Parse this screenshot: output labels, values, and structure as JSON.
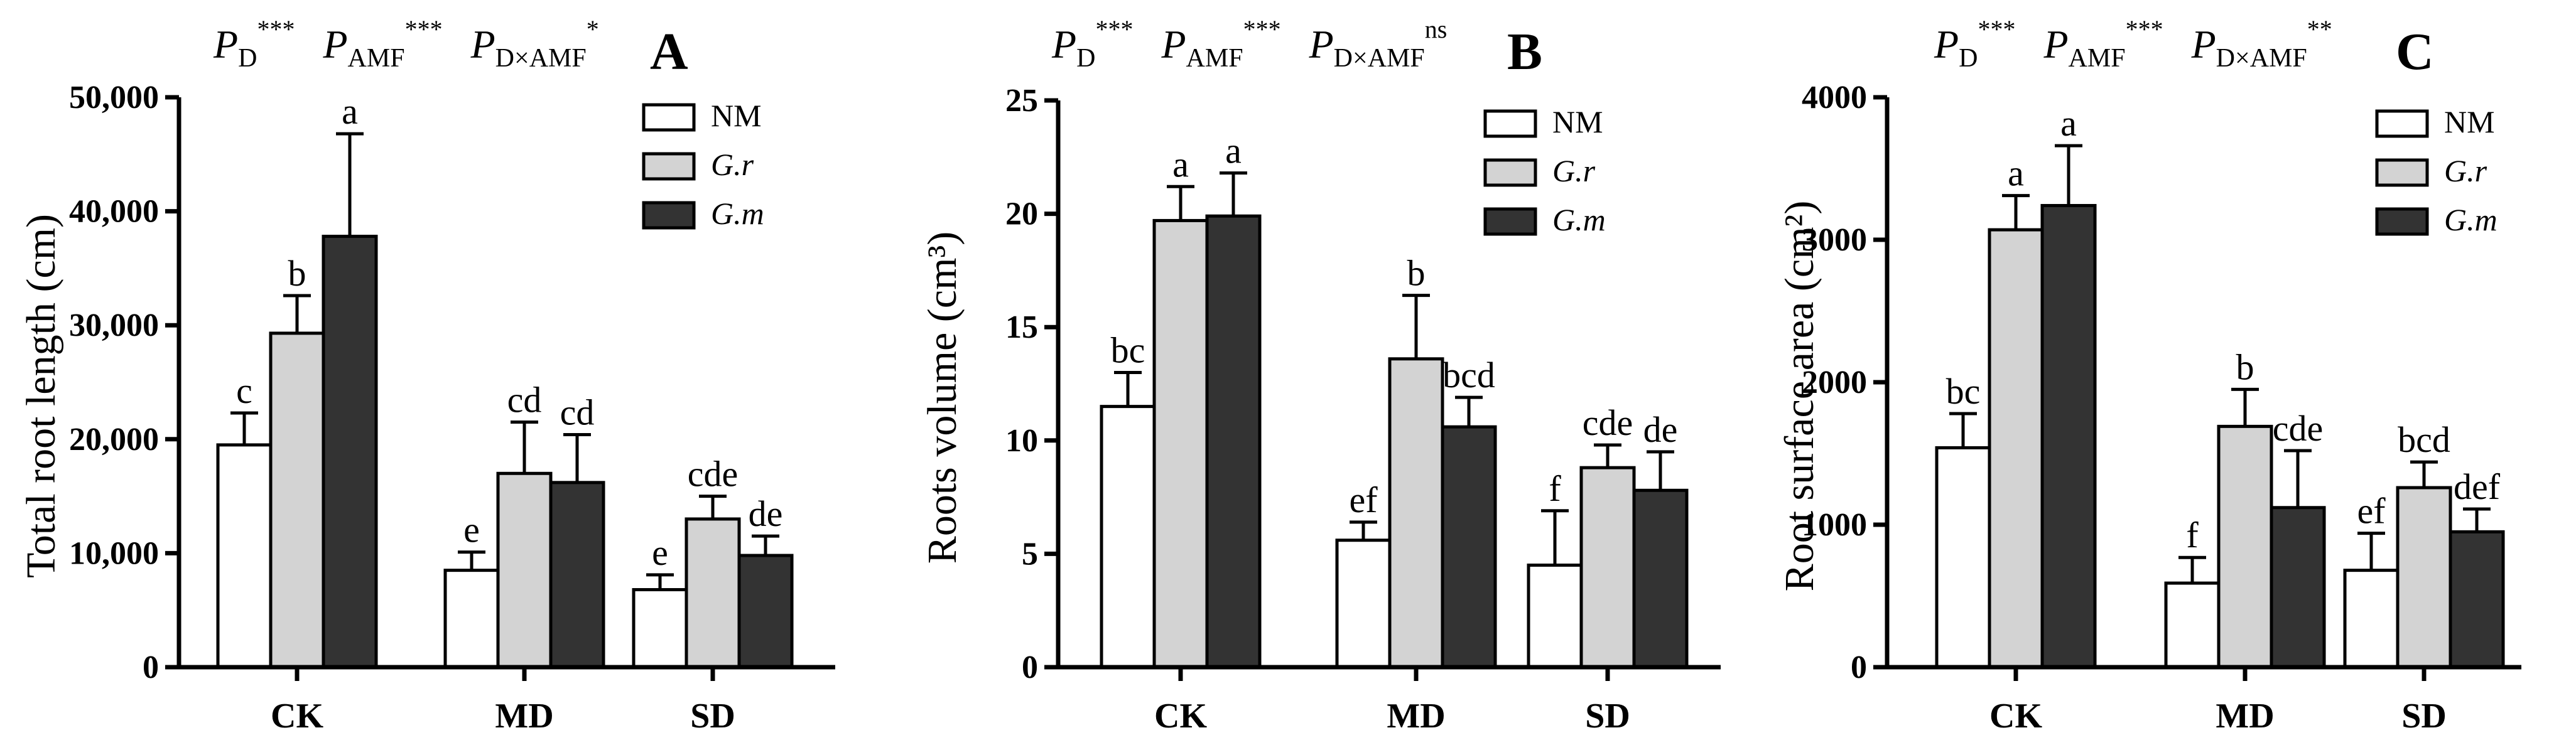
{
  "chart_data": [
    {
      "panel": "A",
      "type": "bar",
      "categories": [
        "CK",
        "MD",
        "SD"
      ],
      "ylabel": "Total root length (cm)",
      "ylim": [
        0,
        50000
      ],
      "yticks": [
        0,
        10000,
        20000,
        30000,
        40000,
        50000
      ],
      "ytick_labels": [
        "0",
        "10,000",
        "20,000",
        "30,000",
        "40,000",
        "50,000"
      ],
      "legend_position": "top-right",
      "pvalues": [
        {
          "base": "P",
          "sub": "D",
          "sup": "***"
        },
        {
          "base": "P",
          "sub": "AMF",
          "sup": "***"
        },
        {
          "base": "P",
          "sub": "D×AMF",
          "sup": "*"
        }
      ],
      "series": [
        {
          "name": "NM",
          "values": [
            19500,
            8500,
            6800
          ],
          "errors": [
            2800,
            1600,
            1300
          ],
          "letters": [
            "c",
            "e",
            "e"
          ],
          "color": "#ffffff"
        },
        {
          "name": "G.r",
          "values": [
            29300,
            17000,
            13000
          ],
          "errors": [
            3300,
            4500,
            2000
          ],
          "letters": [
            "b",
            "cd",
            "cde"
          ],
          "color": "#d3d3d3"
        },
        {
          "name": "G.m",
          "values": [
            37800,
            16200,
            9800
          ],
          "errors": [
            9000,
            4200,
            1700
          ],
          "letters": [
            "a",
            "cd",
            "de"
          ],
          "color": "#333333"
        }
      ]
    },
    {
      "panel": "B",
      "type": "bar",
      "categories": [
        "CK",
        "MD",
        "SD"
      ],
      "ylabel": "Roots volume (cm³)",
      "ylim": [
        0,
        25
      ],
      "yticks": [
        0,
        5,
        10,
        15,
        20,
        25
      ],
      "ytick_labels": [
        "0",
        "5",
        "10",
        "15",
        "20",
        "25"
      ],
      "legend_position": "top-right",
      "pvalues": [
        {
          "base": "P",
          "sub": "D",
          "sup": "***"
        },
        {
          "base": "P",
          "sub": "AMF",
          "sup": "***"
        },
        {
          "base": "P",
          "sub": "D×AMF",
          "sup": "ns"
        }
      ],
      "series": [
        {
          "name": "NM",
          "values": [
            11.5,
            5.6,
            4.5
          ],
          "errors": [
            1.5,
            0.8,
            2.4
          ],
          "letters": [
            "bc",
            "ef",
            "f"
          ],
          "color": "#ffffff"
        },
        {
          "name": "G.r",
          "values": [
            19.7,
            13.6,
            8.8
          ],
          "errors": [
            1.5,
            2.8,
            1.0
          ],
          "letters": [
            "a",
            "b",
            "cde"
          ],
          "color": "#d3d3d3"
        },
        {
          "name": "G.m",
          "values": [
            19.9,
            10.6,
            7.8
          ],
          "errors": [
            1.9,
            1.3,
            1.7
          ],
          "letters": [
            "a",
            "bcd",
            "de"
          ],
          "color": "#333333"
        }
      ]
    },
    {
      "panel": "C",
      "type": "bar",
      "categories": [
        "CK",
        "MD",
        "SD"
      ],
      "ylabel": "Root surface area (cm²)",
      "ylim": [
        0,
        4000
      ],
      "yticks": [
        0,
        1000,
        2000,
        3000,
        4000
      ],
      "ytick_labels": [
        "0",
        "1000",
        "2000",
        "3000",
        "4000"
      ],
      "legend_position": "top-right",
      "pvalues": [
        {
          "base": "P",
          "sub": "D",
          "sup": "***"
        },
        {
          "base": "P",
          "sub": "AMF",
          "sup": "***"
        },
        {
          "base": "P",
          "sub": "D×AMF",
          "sup": "**"
        }
      ],
      "series": [
        {
          "name": "NM",
          "values": [
            1540,
            590,
            680
          ],
          "errors": [
            240,
            180,
            260
          ],
          "letters": [
            "bc",
            "f",
            "ef"
          ],
          "color": "#ffffff"
        },
        {
          "name": "G.r",
          "values": [
            3070,
            1690,
            1260
          ],
          "errors": [
            240,
            260,
            180
          ],
          "letters": [
            "a",
            "b",
            "bcd"
          ],
          "color": "#d3d3d3"
        },
        {
          "name": "G.m",
          "values": [
            3240,
            1120,
            950
          ],
          "errors": [
            420,
            400,
            160
          ],
          "letters": [
            "a",
            "cde",
            "def"
          ],
          "color": "#333333"
        }
      ]
    }
  ]
}
